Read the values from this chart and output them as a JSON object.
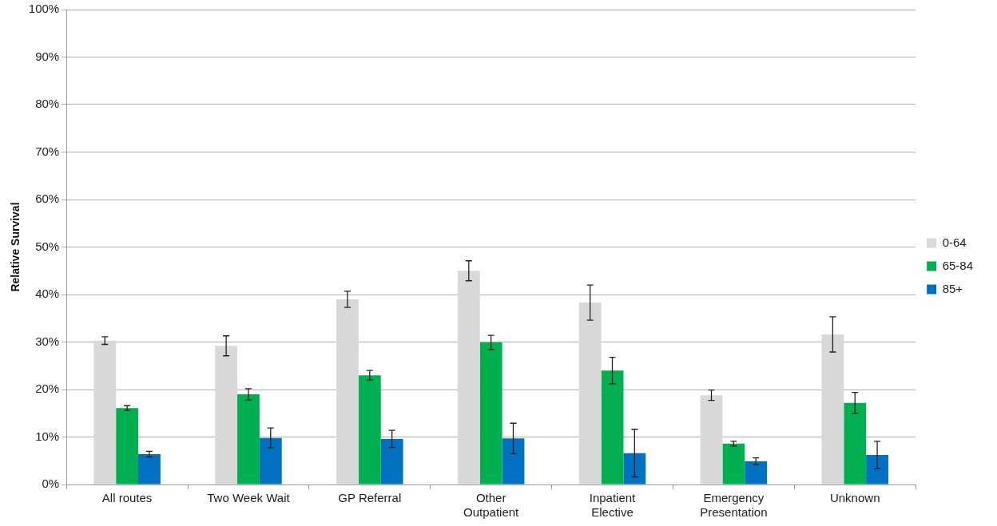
{
  "chart_data": {
    "type": "bar",
    "ylabel": "Relative Survival",
    "categories": [
      "All routes",
      "Two Week Wait",
      "GP Referral",
      "Other Outpatient",
      "Inpatient Elective",
      "Emergency Presentation",
      "Unknown"
    ],
    "series": [
      {
        "name": "0-64",
        "color": "#d9d9d9",
        "values": [
          30.3,
          29.2,
          39.0,
          45.0,
          38.3,
          18.8,
          31.6
        ],
        "errors": [
          0.8,
          2.1,
          1.7,
          2.1,
          3.7,
          1.1,
          3.7
        ]
      },
      {
        "name": "65-84",
        "color": "#00b050",
        "values": [
          16.1,
          19.0,
          23.0,
          29.9,
          24.0,
          8.6,
          17.2
        ],
        "errors": [
          0.5,
          1.2,
          1.0,
          1.5,
          2.8,
          0.5,
          2.2
        ]
      },
      {
        "name": "85+",
        "color": "#0070c0",
        "values": [
          6.4,
          9.8,
          9.6,
          9.7,
          6.6,
          4.9,
          6.2
        ],
        "errors": [
          0.6,
          2.1,
          1.8,
          3.2,
          5.0,
          0.7,
          2.9
        ]
      }
    ],
    "ylim": [
      0,
      100
    ],
    "yticks": [
      {
        "value": 0,
        "label": "0%"
      },
      {
        "value": 10,
        "label": "10%"
      },
      {
        "value": 20,
        "label": "20%"
      },
      {
        "value": 30,
        "label": "30%"
      },
      {
        "value": 40,
        "label": "40%"
      },
      {
        "value": 50,
        "label": "50%"
      },
      {
        "value": 60,
        "label": "60%"
      },
      {
        "value": 70,
        "label": "70%"
      },
      {
        "value": 80,
        "label": "80%"
      },
      {
        "value": 90,
        "label": "90%"
      },
      {
        "value": 100,
        "label": "100%"
      }
    ],
    "grid": "y",
    "legend": "right"
  }
}
